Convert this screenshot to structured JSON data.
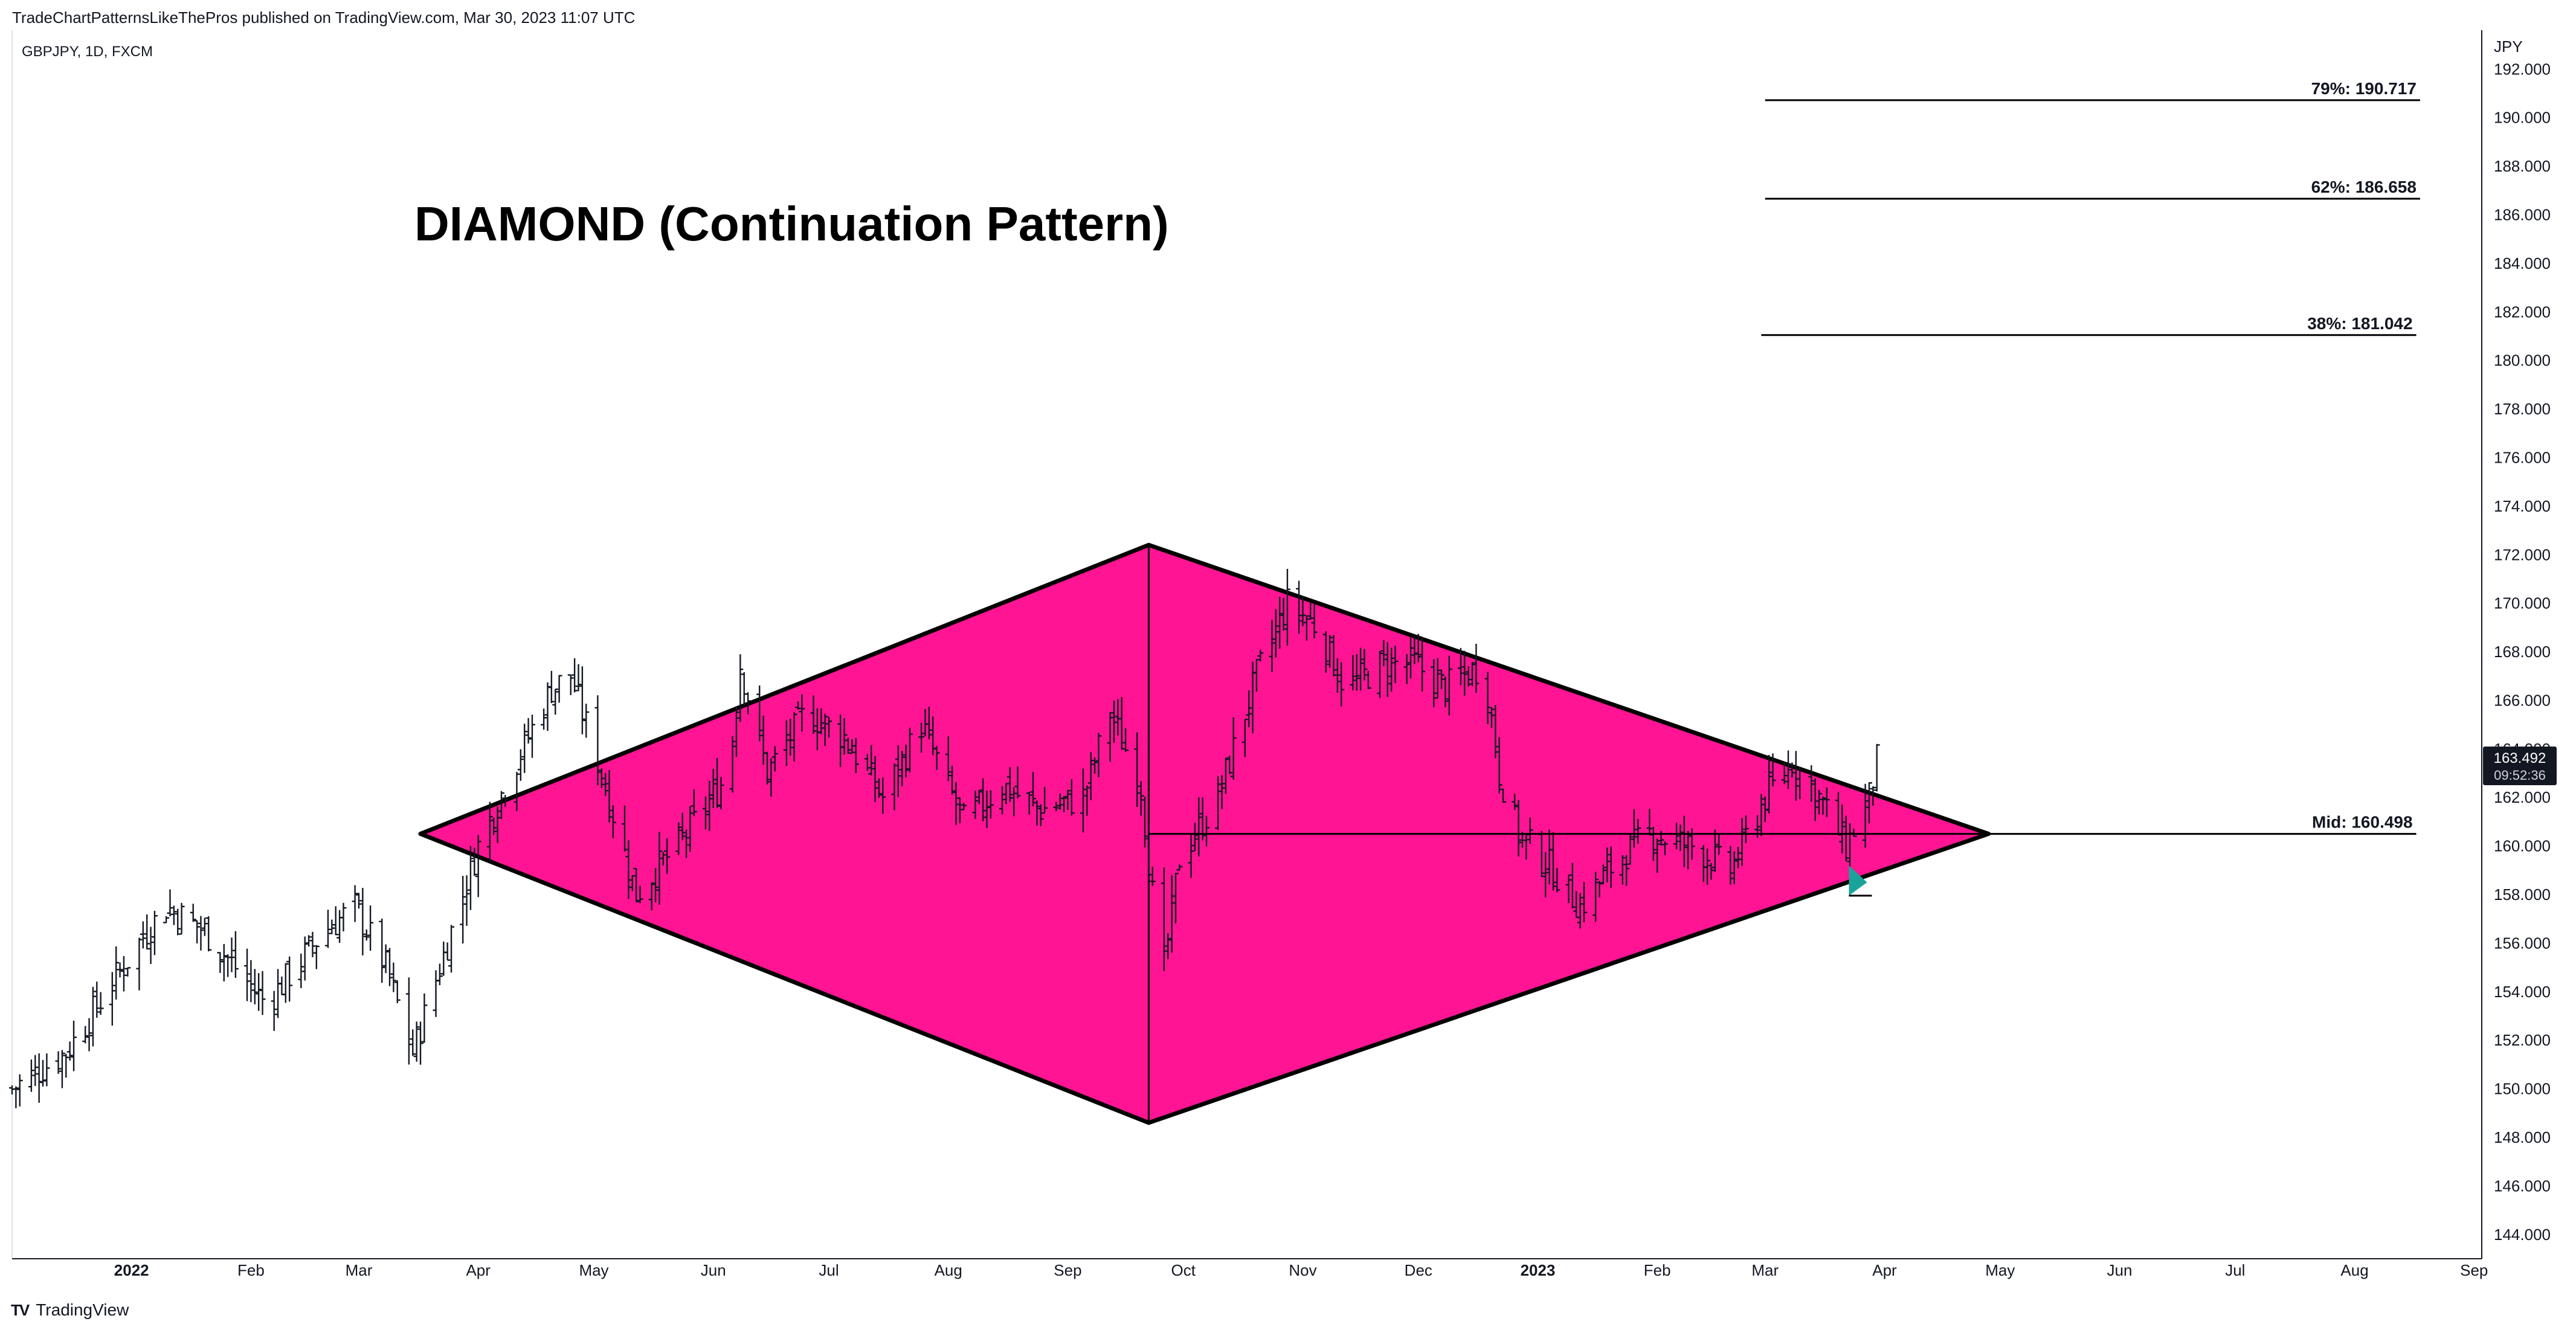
{
  "header": {
    "published": "TradeChartPatternsLikeThePros published on TradingView.com, Mar 30, 2023 11:07 UTC",
    "symbol": "GBPJPY, 1D, FXCM"
  },
  "footer": {
    "brand": "TradingView",
    "logo_text": "TV"
  },
  "colors": {
    "diamond_fill": "#ff1493",
    "bar": "#131722",
    "line": "#000000",
    "price_tag_bg": "#131722",
    "arrow": "#1aa39a"
  },
  "chart_data": {
    "type": "ohlc",
    "title": "DIAMOND (Continuation Pattern)",
    "currency": "JPY",
    "ylim": [
      143.0,
      193.6
    ],
    "x_range": [
      "2021-12-01",
      "2023-09-03"
    ],
    "y_ticks": [
      "144.000",
      "146.000",
      "148.000",
      "150.000",
      "152.000",
      "154.000",
      "156.000",
      "158.000",
      "160.000",
      "162.000",
      "164.000",
      "166.000",
      "168.000",
      "170.000",
      "172.000",
      "174.000",
      "176.000",
      "178.000",
      "180.000",
      "182.000",
      "184.000",
      "186.000",
      "188.000",
      "190.000",
      "192.000"
    ],
    "x_ticks": [
      {
        "label": "2022",
        "date": "2022-01-01",
        "year": true
      },
      {
        "label": "Feb",
        "date": "2022-02-01"
      },
      {
        "label": "Mar",
        "date": "2022-03-01"
      },
      {
        "label": "Apr",
        "date": "2022-04-01"
      },
      {
        "label": "May",
        "date": "2022-05-01"
      },
      {
        "label": "Jun",
        "date": "2022-06-01"
      },
      {
        "label": "Jul",
        "date": "2022-07-01"
      },
      {
        "label": "Aug",
        "date": "2022-08-01"
      },
      {
        "label": "Sep",
        "date": "2022-09-01"
      },
      {
        "label": "Oct",
        "date": "2022-10-01"
      },
      {
        "label": "Nov",
        "date": "2022-11-01"
      },
      {
        "label": "Dec",
        "date": "2022-12-01"
      },
      {
        "label": "2023",
        "date": "2023-01-01",
        "year": true
      },
      {
        "label": "Feb",
        "date": "2023-02-01"
      },
      {
        "label": "Mar",
        "date": "2023-03-01"
      },
      {
        "label": "Apr",
        "date": "2023-04-01"
      },
      {
        "label": "May",
        "date": "2023-05-01"
      },
      {
        "label": "Jun",
        "date": "2023-06-01"
      },
      {
        "label": "Jul",
        "date": "2023-07-01"
      },
      {
        "label": "Aug",
        "date": "2023-08-01"
      },
      {
        "label": "Sep",
        "date": "2023-09-01"
      }
    ],
    "price_path": [
      [
        "2021-12-01",
        150.0
      ],
      [
        "2021-12-15",
        151.5
      ],
      [
        "2022-01-05",
        156.5
      ],
      [
        "2022-01-10",
        157.5
      ],
      [
        "2022-01-20",
        156.5
      ],
      [
        "2022-02-05",
        153.5
      ],
      [
        "2022-02-20",
        156.5
      ],
      [
        "2022-02-28",
        157.5
      ],
      [
        "2022-03-08",
        155.0
      ],
      [
        "2022-03-15",
        151.5
      ],
      [
        "2022-03-25",
        156.5
      ],
      [
        "2022-04-01",
        160.0
      ],
      [
        "2022-04-08",
        162.5
      ],
      [
        "2022-04-20",
        166.5
      ],
      [
        "2022-04-25",
        167.0
      ],
      [
        "2022-05-03",
        163.0
      ],
      [
        "2022-05-12",
        158.0
      ],
      [
        "2022-05-25",
        160.5
      ],
      [
        "2022-06-05",
        163.0
      ],
      [
        "2022-06-08",
        167.5
      ],
      [
        "2022-06-15",
        163.0
      ],
      [
        "2022-06-25",
        165.5
      ],
      [
        "2022-07-05",
        164.5
      ],
      [
        "2022-07-15",
        162.0
      ],
      [
        "2022-07-25",
        165.0
      ],
      [
        "2022-08-05",
        161.0
      ],
      [
        "2022-08-15",
        162.5
      ],
      [
        "2022-08-25",
        161.5
      ],
      [
        "2022-09-05",
        162.0
      ],
      [
        "2022-09-12",
        165.5
      ],
      [
        "2022-09-20",
        162.5
      ],
      [
        "2022-09-23",
        158.0
      ],
      [
        "2022-09-26",
        155.0
      ],
      [
        "2022-09-30",
        159.5
      ],
      [
        "2022-10-10",
        162.0
      ],
      [
        "2022-10-20",
        167.0
      ],
      [
        "2022-10-28",
        170.0
      ],
      [
        "2022-11-05",
        169.0
      ],
      [
        "2022-11-12",
        166.5
      ],
      [
        "2022-11-22",
        167.5
      ],
      [
        "2022-11-30",
        167.5
      ],
      [
        "2022-12-08",
        166.5
      ],
      [
        "2022-12-18",
        167.5
      ],
      [
        "2022-12-22",
        163.0
      ],
      [
        "2022-12-27",
        160.5
      ],
      [
        "2023-01-05",
        159.0
      ],
      [
        "2023-01-12",
        157.5
      ],
      [
        "2023-01-22",
        159.5
      ],
      [
        "2023-01-30",
        160.5
      ],
      [
        "2023-02-10",
        160.0
      ],
      [
        "2023-02-20",
        159.0
      ],
      [
        "2023-03-01",
        162.0
      ],
      [
        "2023-03-08",
        163.5
      ],
      [
        "2023-03-15",
        162.0
      ],
      [
        "2023-03-22",
        160.0
      ],
      [
        "2023-03-28",
        162.0
      ],
      [
        "2023-03-30",
        163.5
      ]
    ],
    "pattern": {
      "name": "Diamond",
      "vertices": [
        {
          "date": "2022-03-17",
          "price": 160.5
        },
        {
          "date": "2022-09-22",
          "price": 172.4
        },
        {
          "date": "2023-04-28",
          "price": 160.5
        },
        {
          "date": "2022-09-22",
          "price": 148.6
        }
      ]
    },
    "levels": [
      {
        "label": "79%: 190.717",
        "value": 190.717,
        "from": "2023-03-01",
        "to": "2023-08-18"
      },
      {
        "label": "62%: 186.658",
        "value": 186.658,
        "from": "2023-03-01",
        "to": "2023-08-18"
      },
      {
        "label": "38%: 181.042",
        "value": 181.042,
        "from": "2023-02-28",
        "to": "2023-08-17"
      },
      {
        "label": "Mid: 160.498",
        "value": 160.498,
        "from": "2022-09-22",
        "to": "2023-08-17"
      }
    ],
    "last_price": {
      "value": "163.492",
      "countdown": "09:52:36",
      "price": 163.5
    },
    "marker": {
      "type": "arrow-up",
      "date": "2023-03-24",
      "price": 158.8
    }
  }
}
